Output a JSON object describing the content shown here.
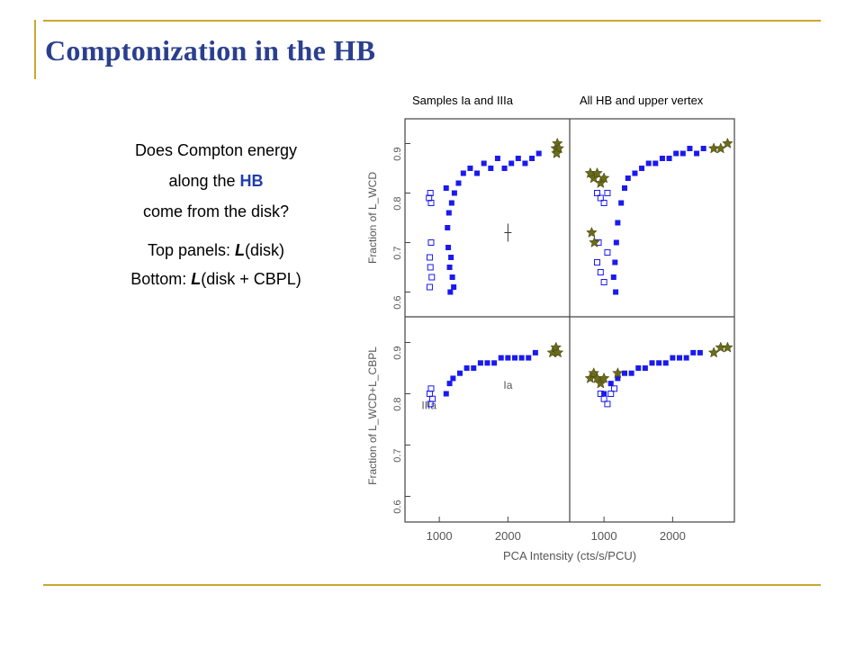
{
  "slide": {
    "title": "Comptonization in the HB",
    "body": {
      "q1": "Does Compton energy",
      "q2_pre": "along the ",
      "q2_hl": "HB",
      "q3": "come from the disk?",
      "p1_pre": "Top panels: ",
      "p1_em": "L",
      "p1_post": "(disk)",
      "p2_pre": "Bottom: ",
      "p2_em": "L",
      "p2_post": "(disk + CBPL)"
    },
    "captions": {
      "left": "Samples Ia and IIIa",
      "right": "All HB and upper vertex"
    },
    "accent_colors": {
      "title": "#2a3f8e",
      "rule": "#c9a830",
      "highlight": "#1f3ea8",
      "filled_marker": "#1a1aee",
      "star_marker": "#6b6b1a"
    }
  },
  "figure": {
    "x_axis_label": "PCA Intensity (cts/s/PCU)",
    "x_ticks": [
      "1000",
      "2000"
    ],
    "y_ticks": [
      "0.6",
      "0.7",
      "0.8",
      "0.9"
    ],
    "y_label_top": "Fraction of L_WCD",
    "y_label_bottom": "Fraction of L_WCD+L_CBPL",
    "annotations": {
      "Ia": "Ia",
      "IIIa": "IIIa"
    },
    "xlim": [
      500,
      2900
    ],
    "ylim": [
      0.55,
      0.95
    ]
  },
  "chart_data": {
    "type": "scatter",
    "xlabel": "PCA Intensity (cts/s/PCU)",
    "x_range": [
      500,
      2900
    ],
    "y_range": [
      0.55,
      0.95
    ],
    "panels": [
      {
        "panel": "top-left",
        "series": [
          {
            "marker": "filled-square",
            "points": [
              [
                1100,
                0.81
              ],
              [
                1180,
                0.78
              ],
              [
                1220,
                0.8
              ],
              [
                1280,
                0.82
              ],
              [
                1350,
                0.84
              ],
              [
                1450,
                0.85
              ],
              [
                1550,
                0.84
              ],
              [
                1650,
                0.86
              ],
              [
                1750,
                0.85
              ],
              [
                1850,
                0.87
              ],
              [
                1950,
                0.85
              ],
              [
                2050,
                0.86
              ],
              [
                2150,
                0.87
              ],
              [
                2250,
                0.86
              ],
              [
                2350,
                0.87
              ],
              [
                2450,
                0.88
              ],
              [
                1150,
                0.65
              ],
              [
                1170,
                0.67
              ],
              [
                1190,
                0.63
              ],
              [
                1210,
                0.61
              ],
              [
                1130,
                0.69
              ],
              [
                1160,
                0.6
              ],
              [
                1120,
                0.73
              ],
              [
                1140,
                0.76
              ]
            ]
          },
          {
            "marker": "open-square",
            "points": [
              [
                850,
                0.79
              ],
              [
                870,
                0.8
              ],
              [
                880,
                0.78
              ],
              [
                860,
                0.67
              ],
              [
                870,
                0.65
              ],
              [
                890,
                0.63
              ],
              [
                880,
                0.7
              ],
              [
                860,
                0.61
              ]
            ]
          },
          {
            "marker": "star",
            "points": [
              [
                2700,
                0.89
              ],
              [
                2720,
                0.9
              ],
              [
                2740,
                0.89
              ],
              [
                2710,
                0.88
              ]
            ]
          }
        ]
      },
      {
        "panel": "top-right",
        "series": [
          {
            "marker": "filled-square",
            "points": [
              [
                1200,
                0.74
              ],
              [
                1250,
                0.78
              ],
              [
                1300,
                0.81
              ],
              [
                1350,
                0.83
              ],
              [
                1450,
                0.84
              ],
              [
                1550,
                0.85
              ],
              [
                1650,
                0.86
              ],
              [
                1750,
                0.86
              ],
              [
                1850,
                0.87
              ],
              [
                1950,
                0.87
              ],
              [
                2050,
                0.88
              ],
              [
                2150,
                0.88
              ],
              [
                2250,
                0.89
              ],
              [
                2350,
                0.88
              ],
              [
                2450,
                0.89
              ],
              [
                1180,
                0.7
              ],
              [
                1160,
                0.66
              ],
              [
                1140,
                0.63
              ],
              [
                1170,
                0.6
              ]
            ]
          },
          {
            "marker": "open-square",
            "points": [
              [
                900,
                0.8
              ],
              [
                950,
                0.79
              ],
              [
                1000,
                0.78
              ],
              [
                1050,
                0.8
              ],
              [
                900,
                0.66
              ],
              [
                950,
                0.64
              ],
              [
                1000,
                0.62
              ],
              [
                920,
                0.7
              ],
              [
                1050,
                0.68
              ]
            ]
          },
          {
            "marker": "star",
            "points": [
              [
                800,
                0.84
              ],
              [
                850,
                0.83
              ],
              [
                900,
                0.84
              ],
              [
                950,
                0.82
              ],
              [
                1000,
                0.83
              ],
              [
                2600,
                0.89
              ],
              [
                2700,
                0.89
              ],
              [
                2800,
                0.9
              ],
              [
                820,
                0.72
              ],
              [
                860,
                0.7
              ]
            ]
          }
        ]
      },
      {
        "panel": "bottom-left",
        "series": [
          {
            "marker": "filled-square",
            "points": [
              [
                1100,
                0.8
              ],
              [
                1150,
                0.82
              ],
              [
                1200,
                0.83
              ],
              [
                1300,
                0.84
              ],
              [
                1400,
                0.85
              ],
              [
                1500,
                0.85
              ],
              [
                1600,
                0.86
              ],
              [
                1700,
                0.86
              ],
              [
                1800,
                0.86
              ],
              [
                1900,
                0.87
              ],
              [
                2000,
                0.87
              ],
              [
                2100,
                0.87
              ],
              [
                2200,
                0.87
              ],
              [
                2300,
                0.87
              ],
              [
                2400,
                0.88
              ]
            ]
          },
          {
            "marker": "open-square",
            "points": [
              [
                860,
                0.8
              ],
              [
                880,
                0.81
              ],
              [
                900,
                0.79
              ],
              [
                870,
                0.78
              ]
            ]
          },
          {
            "marker": "star",
            "points": [
              [
                2650,
                0.88
              ],
              [
                2700,
                0.89
              ],
              [
                2730,
                0.88
              ]
            ]
          }
        ]
      },
      {
        "panel": "bottom-right",
        "series": [
          {
            "marker": "filled-square",
            "points": [
              [
                1000,
                0.8
              ],
              [
                1100,
                0.82
              ],
              [
                1200,
                0.83
              ],
              [
                1300,
                0.84
              ],
              [
                1400,
                0.84
              ],
              [
                1500,
                0.85
              ],
              [
                1600,
                0.85
              ],
              [
                1700,
                0.86
              ],
              [
                1800,
                0.86
              ],
              [
                1900,
                0.86
              ],
              [
                2000,
                0.87
              ],
              [
                2100,
                0.87
              ],
              [
                2200,
                0.87
              ],
              [
                2300,
                0.88
              ],
              [
                2400,
                0.88
              ]
            ]
          },
          {
            "marker": "open-square",
            "points": [
              [
                950,
                0.8
              ],
              [
                1000,
                0.79
              ],
              [
                1050,
                0.78
              ],
              [
                1100,
                0.8
              ],
              [
                1150,
                0.81
              ]
            ]
          },
          {
            "marker": "star",
            "points": [
              [
                800,
                0.83
              ],
              [
                850,
                0.84
              ],
              [
                900,
                0.83
              ],
              [
                950,
                0.82
              ],
              [
                1000,
                0.83
              ],
              [
                1200,
                0.84
              ],
              [
                2600,
                0.88
              ],
              [
                2700,
                0.89
              ],
              [
                2800,
                0.89
              ]
            ]
          }
        ]
      }
    ]
  }
}
